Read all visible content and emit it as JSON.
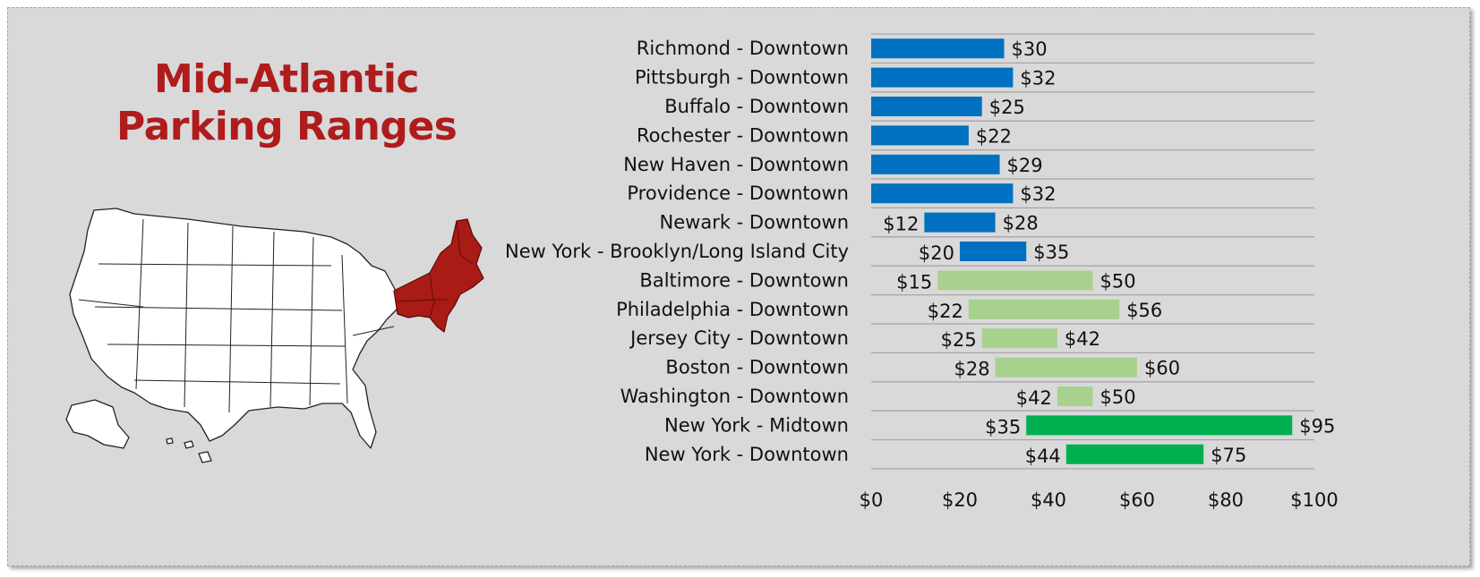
{
  "title_lines": [
    "Mid-Atlantic",
    "Parking Ranges"
  ],
  "colors": {
    "background": "#d9d9d9",
    "title": "#b01c1c",
    "map_highlight": "#a91b15",
    "map_fill": "#ffffff",
    "series_blue": "#0070c0",
    "series_light_green": "#a9d18e",
    "series_green": "#00b050",
    "gridline": "#a6a6a6"
  },
  "map": {
    "icon": "us-states-map-icon",
    "highlighted_region": "Northeast / Mid-Atlantic"
  },
  "chart_data": {
    "type": "bar",
    "subtype": "floating-range-bar",
    "orientation": "horizontal",
    "x_axis": {
      "min": 0,
      "max": 100,
      "ticks": [
        "$0",
        "$20",
        "$40",
        "$60",
        "$80",
        "$100"
      ]
    },
    "legend": "none",
    "grid": "horizontal row separators",
    "categories": [
      "Richmond - Downtown",
      "Pittsburgh - Downtown",
      "Buffalo - Downtown",
      "Rochester - Downtown",
      "New Haven - Downtown",
      "Providence - Downtown",
      "Newark - Downtown",
      "New York - Brooklyn/Long Island City",
      "Baltimore - Downtown",
      "Philadelphia - Downtown",
      "Jersey City - Downtown",
      "Boston - Downtown",
      "Washington - Downtown",
      "New York - Midtown",
      "New York - Downtown"
    ],
    "low": [
      0,
      0,
      0,
      0,
      0,
      0,
      12,
      20,
      15,
      22,
      25,
      28,
      42,
      35,
      44
    ],
    "high": [
      30,
      32,
      25,
      22,
      29,
      32,
      28,
      35,
      50,
      56,
      42,
      60,
      50,
      95,
      75
    ],
    "low_labels": [
      "",
      "",
      "",
      "",
      "",
      "",
      "$12",
      "$20",
      "$15",
      "$22",
      "$25",
      "$28",
      "$42",
      "$35",
      "$44"
    ],
    "high_labels": [
      "$30",
      "$32",
      "$25",
      "$22",
      "$29",
      "$32",
      "$28",
      "$35",
      "$50",
      "$56",
      "$42",
      "$60",
      "$50",
      "$95",
      "$75"
    ],
    "bar_colors": [
      "#0070c0",
      "#0070c0",
      "#0070c0",
      "#0070c0",
      "#0070c0",
      "#0070c0",
      "#0070c0",
      "#0070c0",
      "#a9d18e",
      "#a9d18e",
      "#a9d18e",
      "#a9d18e",
      "#a9d18e",
      "#00b050",
      "#00b050"
    ]
  }
}
